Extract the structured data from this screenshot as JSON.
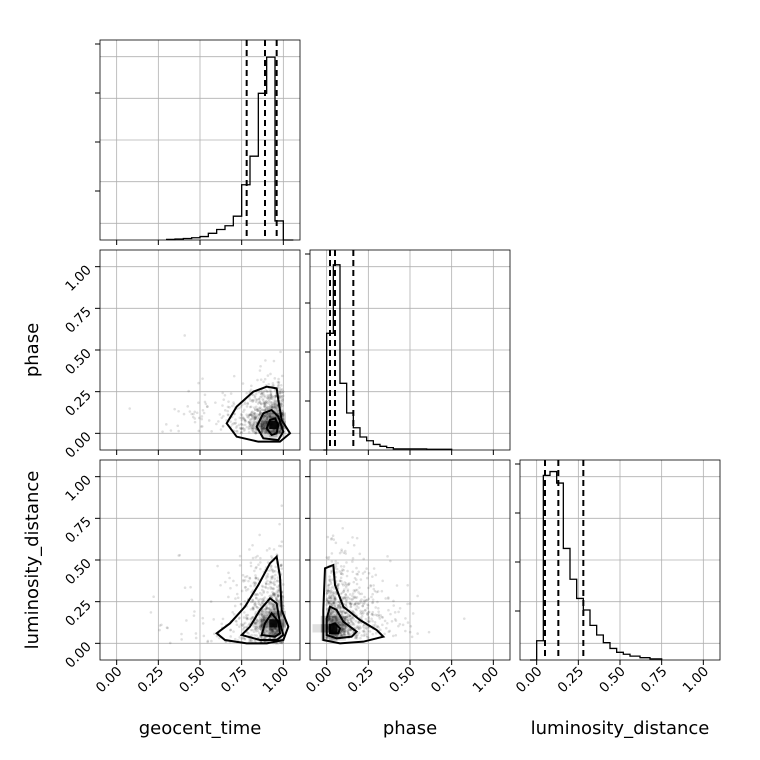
{
  "chart_data": {
    "type": "corner",
    "parameters": [
      "geocent_time",
      "phase",
      "luminosity_distance"
    ],
    "axis_range": [
      -0.1,
      1.1
    ],
    "ticks": [
      0.0,
      0.25,
      0.5,
      0.75,
      1.0
    ],
    "tick_labels": [
      "0.00",
      "0.25",
      "0.50",
      "0.75",
      "1.00"
    ],
    "grid": true,
    "quantile_lines": {
      "geocent_time": [
        0.78,
        0.89,
        0.96
      ],
      "phase": [
        0.02,
        0.05,
        0.16
      ],
      "luminosity_distance": [
        0.05,
        0.13,
        0.28
      ]
    },
    "histograms": {
      "geocent_time": {
        "edges": [
          0.3,
          0.35,
          0.4,
          0.45,
          0.5,
          0.55,
          0.6,
          0.65,
          0.7,
          0.75,
          0.8,
          0.85,
          0.9,
          0.95,
          1.0,
          1.06
        ],
        "counts": [
          0.003,
          0.005,
          0.008,
          0.012,
          0.018,
          0.035,
          0.055,
          0.075,
          0.125,
          0.29,
          0.44,
          0.77,
          0.96,
          0.1,
          0.0
        ],
        "ymax": 1.05
      },
      "phase": {
        "edges": [
          -0.02,
          0.0,
          0.04,
          0.08,
          0.12,
          0.16,
          0.2,
          0.24,
          0.28,
          0.32,
          0.36,
          0.4,
          0.5,
          0.6,
          0.75
        ],
        "counts": [
          0.0,
          0.63,
          1.0,
          0.36,
          0.2,
          0.12,
          0.07,
          0.05,
          0.03,
          0.02,
          0.013,
          0.006,
          0.006,
          0.004
        ],
        "ymax": 1.08
      },
      "luminosity_distance": {
        "edges": [
          -0.04,
          0.0,
          0.04,
          0.08,
          0.12,
          0.16,
          0.2,
          0.24,
          0.28,
          0.32,
          0.36,
          0.4,
          0.44,
          0.48,
          0.52,
          0.56,
          0.62,
          0.68,
          0.75
        ],
        "counts": [
          0.0,
          0.1,
          0.96,
          0.98,
          0.92,
          0.58,
          0.42,
          0.32,
          0.26,
          0.18,
          0.13,
          0.09,
          0.06,
          0.04,
          0.03,
          0.02,
          0.012,
          0.006
        ],
        "ymax": 1.04
      }
    },
    "joint_2d": [
      {
        "x": "geocent_time",
        "y": "phase",
        "cloud_center": [
          0.9,
          0.1
        ],
        "density_peak": [
          0.94,
          0.05
        ],
        "contours": [
          [
            [
              0.66,
              0.06
            ],
            [
              0.72,
              0.16
            ],
            [
              0.82,
              0.25
            ],
            [
              0.9,
              0.28
            ],
            [
              0.96,
              0.27
            ],
            [
              0.97,
              0.2
            ],
            [
              0.99,
              0.08
            ],
            [
              1.04,
              0.0
            ],
            [
              0.98,
              -0.05
            ],
            [
              0.85,
              -0.05
            ],
            [
              0.72,
              -0.02
            ],
            [
              0.66,
              0.06
            ]
          ],
          [
            [
              0.84,
              0.04
            ],
            [
              0.88,
              0.12
            ],
            [
              0.93,
              0.14
            ],
            [
              0.97,
              0.1
            ],
            [
              1.0,
              0.01
            ],
            [
              0.97,
              -0.04
            ],
            [
              0.88,
              -0.03
            ],
            [
              0.84,
              0.04
            ]
          ],
          [
            [
              0.9,
              0.03
            ],
            [
              0.92,
              0.08
            ],
            [
              0.95,
              0.09
            ],
            [
              0.97,
              0.05
            ],
            [
              0.96,
              0.0
            ],
            [
              0.93,
              -0.01
            ],
            [
              0.9,
              0.03
            ]
          ]
        ]
      },
      {
        "x": "geocent_time",
        "y": "luminosity_distance",
        "cloud_center": [
          0.88,
          0.18
        ],
        "density_peak": [
          0.94,
          0.12
        ],
        "contours": [
          [
            [
              0.6,
              0.06
            ],
            [
              0.68,
              0.12
            ],
            [
              0.77,
              0.22
            ],
            [
              0.85,
              0.35
            ],
            [
              0.92,
              0.48
            ],
            [
              0.96,
              0.52
            ],
            [
              0.98,
              0.4
            ],
            [
              0.99,
              0.2
            ],
            [
              1.03,
              0.1
            ],
            [
              1.0,
              0.02
            ],
            [
              0.9,
              0.0
            ],
            [
              0.78,
              0.0
            ],
            [
              0.65,
              0.02
            ],
            [
              0.6,
              0.06
            ]
          ],
          [
            [
              0.75,
              0.05
            ],
            [
              0.8,
              0.1
            ],
            [
              0.86,
              0.2
            ],
            [
              0.92,
              0.27
            ],
            [
              0.96,
              0.24
            ],
            [
              0.98,
              0.12
            ],
            [
              1.0,
              0.05
            ],
            [
              0.96,
              0.02
            ],
            [
              0.86,
              0.02
            ],
            [
              0.75,
              0.05
            ]
          ],
          [
            [
              0.87,
              0.05
            ],
            [
              0.89,
              0.12
            ],
            [
              0.93,
              0.18
            ],
            [
              0.97,
              0.13
            ],
            [
              0.98,
              0.06
            ],
            [
              0.95,
              0.04
            ],
            [
              0.87,
              0.05
            ]
          ]
        ]
      },
      {
        "x": "phase",
        "y": "luminosity_distance",
        "cloud_center": [
          0.08,
          0.2
        ],
        "density_peak": [
          0.04,
          0.09
        ],
        "contours": [
          [
            [
              -0.02,
              0.02
            ],
            [
              -0.02,
              0.2
            ],
            [
              -0.01,
              0.45
            ],
            [
              0.04,
              0.47
            ],
            [
              0.05,
              0.35
            ],
            [
              0.1,
              0.22
            ],
            [
              0.2,
              0.14
            ],
            [
              0.3,
              0.08
            ],
            [
              0.34,
              0.04
            ],
            [
              0.22,
              0.01
            ],
            [
              0.08,
              0.0
            ],
            [
              -0.02,
              0.02
            ]
          ],
          [
            [
              0.0,
              0.05
            ],
            [
              0.0,
              0.15
            ],
            [
              0.02,
              0.22
            ],
            [
              0.06,
              0.2
            ],
            [
              0.1,
              0.13
            ],
            [
              0.18,
              0.07
            ],
            [
              0.15,
              0.04
            ],
            [
              0.06,
              0.03
            ],
            [
              0.0,
              0.05
            ]
          ],
          [
            [
              0.02,
              0.06
            ],
            [
              0.02,
              0.11
            ],
            [
              0.05,
              0.12
            ],
            [
              0.08,
              0.09
            ],
            [
              0.07,
              0.06
            ],
            [
              0.02,
              0.06
            ]
          ]
        ]
      }
    ]
  }
}
